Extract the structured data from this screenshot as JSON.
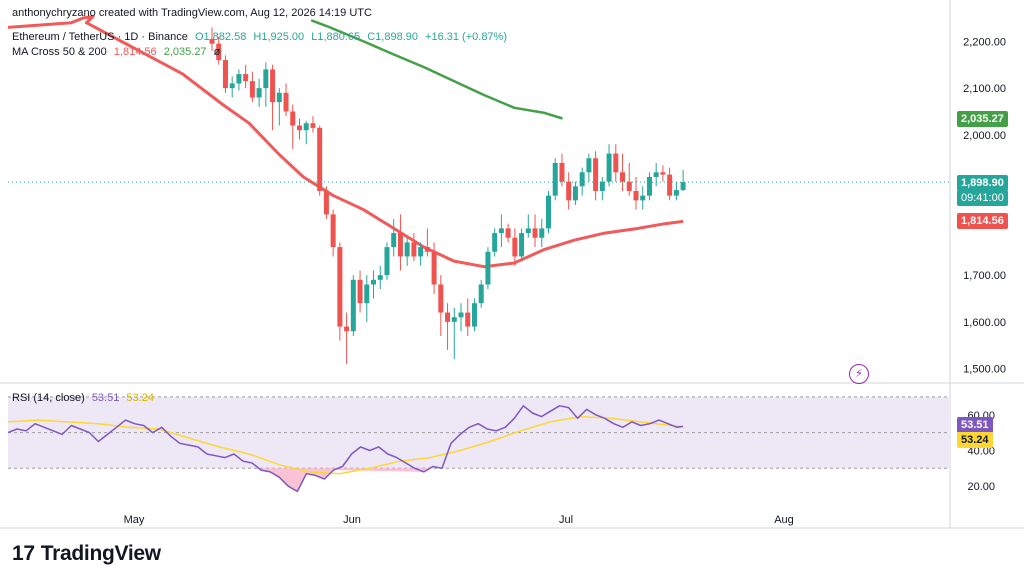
{
  "header": {
    "credit": "anthonychryzano created with TradingView.com, Aug 12, 2026 14:19 UTC",
    "symbol": "Ethereum / TetherUS · 1D · Binance",
    "open": "O1,882.58",
    "high": "H1,925.00",
    "low": "L1,880.65",
    "close": "C1,898.90",
    "change": "+16.31 (+0.87%)",
    "ma_label": "MA Cross 50 & 200",
    "ma50_value": "1,814.56",
    "ma200_value": "2,035.27",
    "ma_suffix": "ø",
    "rsi_label": "RSI (14, close)",
    "rsi_value": "53.51",
    "rsi_ma_value": "53.24"
  },
  "price_tags": {
    "ma200": "2,035.27",
    "last_price": "1,898.90",
    "countdown": "09:41:00",
    "ma50": "1,814.56",
    "rsi": "53.51",
    "rsi_ma": "53.24"
  },
  "brand": {
    "name": "TradingView"
  },
  "colors": {
    "up": "#26a69a",
    "down": "#ef5350",
    "ma50": "#f05a5a",
    "ma200": "#43a047",
    "rsi": "#7e57c2",
    "rsi_ma": "#fdd835",
    "rsi_band": "#ede7f6"
  },
  "chart_data": {
    "type": "candlestick",
    "x_ticks": [
      "May",
      "Jun",
      "Jul",
      "Aug"
    ],
    "y_ticks": [
      "2,200.00",
      "2,100.00",
      "2,000.00",
      "1,700.00",
      "1,600.00",
      "1,500.00"
    ],
    "ylim": [
      1480,
      2250
    ],
    "candles": [
      [
        2205,
        2230,
        2180,
        2195
      ],
      [
        2195,
        2210,
        2150,
        2160
      ],
      [
        2160,
        2170,
        2090,
        2100
      ],
      [
        2100,
        2125,
        2080,
        2110
      ],
      [
        2110,
        2140,
        2095,
        2130
      ],
      [
        2130,
        2150,
        2100,
        2115
      ],
      [
        2115,
        2135,
        2070,
        2080
      ],
      [
        2080,
        2120,
        2060,
        2100
      ],
      [
        2100,
        2155,
        2060,
        2140
      ],
      [
        2140,
        2150,
        2010,
        2070
      ],
      [
        2070,
        2100,
        2020,
        2090
      ],
      [
        2090,
        2110,
        2040,
        2050
      ],
      [
        2050,
        2065,
        1970,
        2020
      ],
      [
        2020,
        2035,
        1990,
        2010
      ],
      [
        2010,
        2030,
        1980,
        2025
      ],
      [
        2025,
        2040,
        2005,
        2015
      ],
      [
        2015,
        2020,
        1870,
        1880
      ],
      [
        1880,
        1890,
        1820,
        1830
      ],
      [
        1830,
        1840,
        1740,
        1760
      ],
      [
        1760,
        1770,
        1560,
        1590
      ],
      [
        1590,
        1620,
        1510,
        1580
      ],
      [
        1580,
        1700,
        1570,
        1690
      ],
      [
        1690,
        1710,
        1620,
        1640
      ],
      [
        1640,
        1700,
        1600,
        1680
      ],
      [
        1680,
        1710,
        1650,
        1690
      ],
      [
        1690,
        1720,
        1670,
        1700
      ],
      [
        1700,
        1770,
        1690,
        1760
      ],
      [
        1760,
        1820,
        1740,
        1790
      ],
      [
        1790,
        1830,
        1710,
        1740
      ],
      [
        1740,
        1780,
        1720,
        1770
      ],
      [
        1770,
        1790,
        1730,
        1740
      ],
      [
        1740,
        1770,
        1720,
        1760
      ],
      [
        1760,
        1800,
        1740,
        1750
      ],
      [
        1750,
        1770,
        1660,
        1680
      ],
      [
        1680,
        1700,
        1570,
        1620
      ],
      [
        1620,
        1640,
        1540,
        1600
      ],
      [
        1600,
        1630,
        1520,
        1610
      ],
      [
        1610,
        1640,
        1580,
        1620
      ],
      [
        1620,
        1650,
        1570,
        1590
      ],
      [
        1590,
        1650,
        1580,
        1640
      ],
      [
        1640,
        1690,
        1630,
        1680
      ],
      [
        1680,
        1760,
        1670,
        1750
      ],
      [
        1750,
        1800,
        1740,
        1790
      ],
      [
        1790,
        1830,
        1760,
        1800
      ],
      [
        1800,
        1810,
        1770,
        1780
      ],
      [
        1780,
        1800,
        1720,
        1740
      ],
      [
        1740,
        1800,
        1730,
        1790
      ],
      [
        1790,
        1830,
        1780,
        1800
      ],
      [
        1800,
        1830,
        1760,
        1780
      ],
      [
        1780,
        1820,
        1760,
        1800
      ],
      [
        1800,
        1880,
        1790,
        1870
      ],
      [
        1870,
        1950,
        1860,
        1940
      ],
      [
        1940,
        1960,
        1890,
        1900
      ],
      [
        1900,
        1920,
        1840,
        1860
      ],
      [
        1860,
        1900,
        1850,
        1890
      ],
      [
        1890,
        1930,
        1870,
        1920
      ],
      [
        1920,
        1960,
        1900,
        1950
      ],
      [
        1950,
        1965,
        1860,
        1880
      ],
      [
        1880,
        1910,
        1860,
        1900
      ],
      [
        1900,
        1980,
        1890,
        1960
      ],
      [
        1960,
        1980,
        1900,
        1920
      ],
      [
        1920,
        1960,
        1880,
        1900
      ],
      [
        1900,
        1940,
        1870,
        1880
      ],
      [
        1880,
        1910,
        1840,
        1860
      ],
      [
        1860,
        1890,
        1840,
        1870
      ],
      [
        1870,
        1920,
        1860,
        1910
      ],
      [
        1910,
        1940,
        1890,
        1920
      ],
      [
        1920,
        1935,
        1900,
        1915
      ],
      [
        1915,
        1930,
        1860,
        1870
      ],
      [
        1870,
        1900,
        1860,
        1882
      ],
      [
        1882,
        1925,
        1880,
        1899
      ]
    ],
    "ma50": [
      [
        2110,
        2230
      ],
      [
        2215,
        2240
      ],
      [
        2235,
        2250
      ],
      [
        2251,
        2253
      ],
      [
        2240,
        2240
      ],
      [
        2400,
        2130
      ],
      [
        2466,
        2065
      ],
      [
        2510,
        2025
      ],
      [
        2560,
        1958
      ],
      [
        2600,
        1910
      ],
      [
        2650,
        1870
      ],
      [
        2700,
        1840
      ],
      [
        2750,
        1800
      ],
      [
        2800,
        1760
      ],
      [
        2850,
        1730
      ],
      [
        2900,
        1718
      ],
      [
        2950,
        1726
      ],
      [
        3000,
        1755
      ],
      [
        3050,
        1775
      ],
      [
        3100,
        1790
      ],
      [
        3150,
        1799
      ],
      [
        3200,
        1810
      ],
      [
        3230,
        1815
      ]
    ],
    "ma200": [
      [
        2613,
        2245
      ],
      [
        2640,
        2232
      ],
      [
        2700,
        2200
      ],
      [
        2750,
        2172
      ],
      [
        2800,
        2145
      ],
      [
        2850,
        2115
      ],
      [
        2900,
        2085
      ],
      [
        2950,
        2058
      ],
      [
        3000,
        2047
      ],
      [
        3030,
        2035
      ]
    ],
    "rsi_ticks": [
      "60.00",
      "40.00",
      "20.00"
    ],
    "rsi_ylim": [
      10,
      75
    ],
    "rsi": [
      [
        2110,
        50
      ],
      [
        2125,
        52
      ],
      [
        2140,
        51
      ],
      [
        2155,
        55
      ],
      [
        2170,
        53
      ],
      [
        2185,
        51
      ],
      [
        2200,
        49
      ],
      [
        2215,
        54
      ],
      [
        2230,
        52
      ],
      [
        2245,
        50
      ],
      [
        2260,
        45
      ],
      [
        2275,
        49
      ],
      [
        2290,
        53
      ],
      [
        2305,
        57
      ],
      [
        2320,
        55
      ],
      [
        2335,
        54
      ],
      [
        2350,
        50
      ],
      [
        2365,
        53
      ],
      [
        2380,
        48
      ],
      [
        2395,
        44
      ],
      [
        2410,
        43
      ],
      [
        2425,
        42
      ],
      [
        2440,
        38
      ],
      [
        2455,
        37
      ],
      [
        2470,
        36
      ],
      [
        2485,
        38
      ],
      [
        2500,
        34
      ],
      [
        2515,
        33
      ],
      [
        2530,
        29
      ],
      [
        2545,
        28
      ],
      [
        2560,
        25
      ],
      [
        2575,
        20
      ],
      [
        2590,
        17
      ],
      [
        2605,
        27
      ],
      [
        2620,
        26
      ],
      [
        2635,
        24
      ],
      [
        2650,
        29
      ],
      [
        2665,
        31
      ],
      [
        2680,
        38
      ],
      [
        2695,
        42
      ],
      [
        2710,
        40
      ],
      [
        2725,
        42
      ],
      [
        2740,
        38
      ],
      [
        2755,
        36
      ],
      [
        2770,
        33
      ],
      [
        2785,
        30
      ],
      [
        2800,
        28
      ],
      [
        2815,
        31
      ],
      [
        2830,
        30
      ],
      [
        2845,
        44
      ],
      [
        2860,
        49
      ],
      [
        2875,
        53
      ],
      [
        2890,
        55
      ],
      [
        2905,
        52
      ],
      [
        2920,
        51
      ],
      [
        2935,
        53
      ],
      [
        2950,
        58
      ],
      [
        2965,
        65
      ],
      [
        2980,
        61
      ],
      [
        2995,
        59
      ],
      [
        3010,
        62
      ],
      [
        3025,
        65
      ],
      [
        3040,
        64
      ],
      [
        3055,
        58
      ],
      [
        3070,
        63
      ],
      [
        3085,
        60
      ],
      [
        3100,
        58
      ],
      [
        3115,
        55
      ],
      [
        3130,
        53
      ],
      [
        3145,
        56
      ],
      [
        3160,
        54
      ],
      [
        3175,
        55
      ],
      [
        3190,
        57
      ],
      [
        3205,
        55
      ],
      [
        3220,
        53
      ],
      [
        3230,
        53.51
      ]
    ],
    "rsi_ma": [
      [
        2110,
        56
      ],
      [
        2160,
        57
      ],
      [
        2210,
        56
      ],
      [
        2260,
        55
      ],
      [
        2310,
        53
      ],
      [
        2360,
        52
      ],
      [
        2410,
        47
      ],
      [
        2460,
        42
      ],
      [
        2510,
        38
      ],
      [
        2560,
        32
      ],
      [
        2610,
        28
      ],
      [
        2660,
        27
      ],
      [
        2710,
        30
      ],
      [
        2760,
        34
      ],
      [
        2810,
        36
      ],
      [
        2860,
        40
      ],
      [
        2910,
        45
      ],
      [
        2960,
        51
      ],
      [
        3010,
        56
      ],
      [
        3060,
        59
      ],
      [
        3110,
        58
      ],
      [
        3160,
        56
      ],
      [
        3210,
        54
      ],
      [
        3230,
        53.24
      ]
    ]
  }
}
